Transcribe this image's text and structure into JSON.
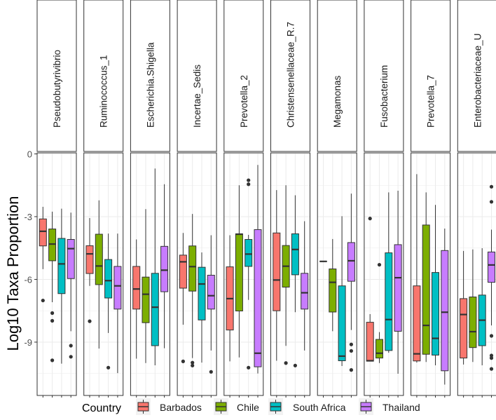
{
  "chart_data": {
    "type": "boxplot",
    "ylabel": "Log10 Taxa Proportion",
    "xlabel": "",
    "ylim": [
      -11.55,
      0.05
    ],
    "yticks": [
      0,
      -3,
      -6,
      -9
    ],
    "grid": true,
    "legend": {
      "title": "Country",
      "position": "bottom",
      "entries": [
        "Barbados",
        "Chile",
        "South Africa",
        "Thailand"
      ]
    },
    "colors": {
      "Barbados": "#F8766D",
      "Chile": "#7CAE00",
      "South Africa": "#00BFC4",
      "Thailand": "#C77CFF"
    },
    "facets": [
      {
        "name": "Pseudobutyrivibrio",
        "boxes": [
          {
            "min": -5.51,
            "q1": -4.4,
            "median": -3.7,
            "q3": -3.11,
            "max": -2.53,
            "outliers": [
              -7.01
            ]
          },
          {
            "min": -7.09,
            "q1": -5.11,
            "median": -4.31,
            "q3": -3.59,
            "max": -2.76,
            "outliers": [
              -7.61,
              -7.98,
              -9.87
            ]
          },
          {
            "min": -10.03,
            "q1": -6.68,
            "median": -5.26,
            "q3": -4.04,
            "max": -2.62,
            "outliers": []
          },
          {
            "min": -8.48,
            "q1": -5.96,
            "median": -4.53,
            "q3": -4.09,
            "max": -2.81,
            "outliers": [
              -9.17,
              -9.7
            ]
          }
        ]
      },
      {
        "name": "Ruminococcus_1",
        "boxes": [
          {
            "min": -6.31,
            "q1": -5.72,
            "median": -4.78,
            "q3": -4.39,
            "max": -3.07,
            "outliers": [
              -8.0
            ]
          },
          {
            "min": -9.31,
            "q1": -6.25,
            "median": -5.36,
            "q3": -3.84,
            "max": -2.22,
            "outliers": []
          },
          {
            "min": -8.56,
            "q1": -6.89,
            "median": -6.06,
            "q3": -5.05,
            "max": -3.81,
            "outliers": [
              -10.22
            ]
          },
          {
            "min": -10.48,
            "q1": -7.42,
            "median": -6.31,
            "q3": -5.38,
            "max": -3.81,
            "outliers": []
          }
        ]
      },
      {
        "name": "Escherichia.Shigella",
        "boxes": [
          {
            "min": -9.79,
            "q1": -7.42,
            "median": -6.46,
            "q3": -5.38,
            "max": -4.09,
            "outliers": []
          },
          {
            "min": -10.0,
            "q1": -8.07,
            "median": -6.71,
            "q3": -5.89,
            "max": -2.64,
            "outliers": []
          },
          {
            "min": -10.11,
            "q1": -9.17,
            "median": -7.33,
            "q3": -5.71,
            "max": -0.7,
            "outliers": []
          },
          {
            "min": -9.29,
            "q1": -6.59,
            "median": -5.56,
            "q3": -4.42,
            "max": -1.45,
            "outliers": []
          }
        ]
      },
      {
        "name": "Incertae_Sedis",
        "boxes": [
          {
            "min": -8.17,
            "q1": -6.42,
            "median": -5.16,
            "q3": -4.84,
            "max": -3.78,
            "outliers": [
              -9.92
            ]
          },
          {
            "min": -9.76,
            "q1": -6.56,
            "median": -5.39,
            "q3": -4.4,
            "max": -2.87,
            "outliers": [
              -9.98,
              -10.12
            ]
          },
          {
            "min": -9.98,
            "q1": -7.94,
            "median": -6.22,
            "q3": -5.42,
            "max": -4.71,
            "outliers": []
          },
          {
            "min": -9.4,
            "q1": -7.42,
            "median": -6.78,
            "q3": -5.8,
            "max": -3.89,
            "outliers": [
              -10.42
            ]
          }
        ]
      },
      {
        "name": "Prevotella_2",
        "boxes": [
          {
            "min": -9.92,
            "q1": -8.42,
            "median": -6.92,
            "q3": -5.4,
            "max": -3.89,
            "outliers": []
          },
          {
            "min": -9.73,
            "q1": -7.51,
            "median": -3.84,
            "q3": -3.82,
            "max": -1.5,
            "outliers": []
          },
          {
            "min": -6.98,
            "q1": -5.38,
            "median": -4.79,
            "q3": -4.09,
            "max": -3.87,
            "outliers": [
              -1.26,
              -1.45,
              -10.22
            ]
          },
          {
            "min": -10.5,
            "q1": -10.18,
            "median": -9.53,
            "q3": -3.62,
            "max": -0.53,
            "outliers": []
          }
        ]
      },
      {
        "name": "Christensenellaceae_R.7",
        "boxes": [
          {
            "min": -9.89,
            "q1": -7.5,
            "median": -6.03,
            "q3": -3.78,
            "max": -1.73,
            "outliers": []
          },
          {
            "min": -9.18,
            "q1": -6.37,
            "median": -5.37,
            "q3": -4.38,
            "max": -1.5,
            "outliers": [
              -10.0
            ]
          },
          {
            "min": -7.57,
            "q1": -5.78,
            "median": -4.57,
            "q3": -3.82,
            "max": -1.98,
            "outliers": [
              -10.12
            ]
          },
          {
            "min": -9.4,
            "q1": -7.42,
            "median": -6.64,
            "q3": -5.71,
            "max": -3.22,
            "outliers": []
          }
        ]
      },
      {
        "name": "Megamonas",
        "boxes": [
          {
            "min": -5.14,
            "q1": -5.14,
            "median": -5.14,
            "q3": -5.14,
            "max": -5.14,
            "outliers": []
          },
          {
            "min": -8.48,
            "q1": -7.56,
            "median": -6.14,
            "q3": -5.5,
            "max": -4.07,
            "outliers": []
          },
          {
            "min": -10.14,
            "q1": -9.89,
            "median": -9.67,
            "q3": -6.31,
            "max": -2.98,
            "outliers": []
          },
          {
            "min": -8.42,
            "q1": -6.09,
            "median": -5.11,
            "q3": -4.24,
            "max": -1.9,
            "outliers": [
              -9.11,
              -9.42,
              -10.33
            ]
          }
        ]
      },
      {
        "name": "Fusobacterium",
        "boxes": [
          {
            "min": -9.91,
            "q1": -9.91,
            "median": -9.89,
            "q3": -8.05,
            "max": -7.66,
            "outliers": [
              -3.09
            ]
          },
          {
            "min": -10.0,
            "q1": -9.76,
            "median": -9.53,
            "q3": -8.87,
            "max": -8.52,
            "outliers": [
              -5.3
            ]
          },
          {
            "min": -9.51,
            "q1": -9.4,
            "median": -7.92,
            "q3": -4.73,
            "max": -1.84,
            "outliers": []
          },
          {
            "min": -10.51,
            "q1": -8.48,
            "median": -5.92,
            "q3": -4.34,
            "max": -1.76,
            "outliers": []
          }
        ]
      },
      {
        "name": "Prevotella_7",
        "boxes": [
          {
            "min": -9.98,
            "q1": -9.9,
            "median": -9.56,
            "q3": -6.31,
            "max": -0.97,
            "outliers": []
          },
          {
            "min": -9.95,
            "q1": -9.58,
            "median": -8.2,
            "q3": -3.4,
            "max": -1.84,
            "outliers": []
          },
          {
            "min": -10.11,
            "q1": -9.62,
            "median": -8.82,
            "q3": -5.67,
            "max": -2.44,
            "outliers": []
          },
          {
            "min": -11.03,
            "q1": -10.37,
            "median": -7.57,
            "q3": -4.62,
            "max": -3.57,
            "outliers": []
          }
        ]
      },
      {
        "name": "Enterobacteriaceae_U",
        "boxes": [
          {
            "min": -10.07,
            "q1": -9.76,
            "median": -7.68,
            "q3": -6.92,
            "max": -4.64,
            "outliers": []
          },
          {
            "min": -9.95,
            "q1": -9.26,
            "median": -8.5,
            "q3": -6.84,
            "max": -4.57,
            "outliers": []
          },
          {
            "min": -10.11,
            "q1": -9.17,
            "median": -7.95,
            "q3": -6.75,
            "max": -4.51,
            "outliers": []
          },
          {
            "min": -8.2,
            "q1": -6.14,
            "median": -5.31,
            "q3": -4.69,
            "max": -3.62,
            "outliers": [
              -1.57,
              -2.29,
              -8.7,
              -9.64,
              -9.76,
              -10.28
            ]
          }
        ]
      }
    ]
  }
}
